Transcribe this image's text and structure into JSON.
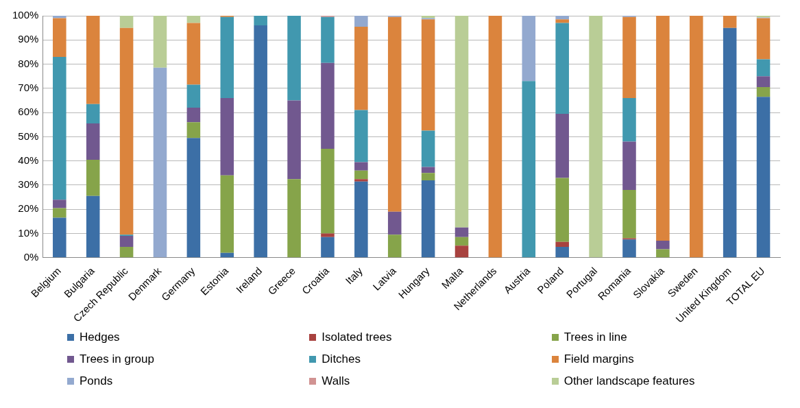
{
  "chart_data": {
    "type": "bar",
    "stacked": true,
    "grid": "y",
    "legend": "bottom",
    "categories": [
      "Belgium",
      "Bulgaria",
      "Czech Republic",
      "Denmark",
      "Germany",
      "Estonia",
      "Ireland",
      "Greece",
      "Croatia",
      "Italy",
      "Latvia",
      "Hungary",
      "Malta",
      "Netherlands",
      "Austria",
      "Poland",
      "Portugal",
      "Romania",
      "Slovakia",
      "Sweden",
      "United Kingdom",
      "TOTAL EU"
    ],
    "ylim": [
      0,
      100
    ],
    "yticks": [
      {
        "value": 0,
        "label": "0%"
      },
      {
        "value": 10,
        "label": "10%"
      },
      {
        "value": 20,
        "label": "20%"
      },
      {
        "value": 30,
        "label": "30%"
      },
      {
        "value": 40,
        "label": "40%"
      },
      {
        "value": 50,
        "label": "50%"
      },
      {
        "value": 60,
        "label": "60%"
      },
      {
        "value": 70,
        "label": "70%"
      },
      {
        "value": 80,
        "label": "80%"
      },
      {
        "value": 90,
        "label": "90%"
      },
      {
        "value": 100,
        "label": "100%"
      }
    ],
    "series": [
      {
        "name": "Hedges",
        "color": "#3c6fa6",
        "values": [
          16.5,
          25.5,
          0,
          0,
          49.5,
          2,
          96,
          0,
          8.5,
          31.5,
          0,
          32,
          0,
          0,
          0,
          4.5,
          0,
          7.5,
          0,
          0,
          95,
          66.5
        ]
      },
      {
        "name": "Isolated trees",
        "color": "#a8423f",
        "values": [
          0,
          0,
          0,
          0,
          0,
          0,
          0,
          0,
          1.5,
          1,
          0,
          0,
          5,
          0,
          0,
          2,
          0,
          0.5,
          0,
          0,
          0,
          0
        ]
      },
      {
        "name": "Trees in line",
        "color": "#86a44a",
        "values": [
          4,
          15,
          4.5,
          0,
          6.5,
          32,
          0,
          32.5,
          35,
          3.5,
          9.5,
          3,
          3.5,
          0,
          0,
          26.5,
          0,
          20,
          3.5,
          0,
          0,
          4
        ]
      },
      {
        "name": "Trees in group",
        "color": "#71588f",
        "values": [
          3.5,
          15,
          4.5,
          0,
          6,
          32,
          0,
          32.5,
          35.5,
          3.5,
          9.5,
          2.5,
          4,
          0,
          0,
          26.5,
          0,
          20,
          3.5,
          0,
          0,
          4.5
        ]
      },
      {
        "name": "Ditches",
        "color": "#4198af",
        "values": [
          59,
          8,
          0.5,
          0,
          9.5,
          33.5,
          4,
          35,
          19,
          21.5,
          0,
          15,
          0,
          0,
          73,
          37.5,
          0,
          18,
          0,
          0,
          0,
          7
        ]
      },
      {
        "name": "Field margins",
        "color": "#db843d",
        "values": [
          16,
          36.5,
          85.5,
          0,
          25.5,
          0.5,
          0,
          0,
          0,
          34.5,
          80.5,
          46,
          0,
          100,
          0,
          1.5,
          0,
          33.5,
          93,
          100,
          5,
          17
        ]
      },
      {
        "name": "Ponds",
        "color": "#93a9cf",
        "values": [
          1,
          0,
          0,
          78.5,
          0,
          0,
          0,
          0,
          0,
          4.5,
          0.5,
          0.5,
          0,
          0,
          27,
          1.5,
          0,
          0.5,
          0,
          0,
          0,
          0.3
        ]
      },
      {
        "name": "Walls",
        "color": "#d19392",
        "values": [
          0,
          0,
          0,
          0,
          0,
          0,
          0,
          0,
          0.5,
          0,
          0,
          0,
          0,
          0,
          0,
          0,
          0,
          0,
          0,
          0,
          0,
          0
        ]
      },
      {
        "name": "Other landscape features",
        "color": "#b9cd96",
        "values": [
          0,
          0,
          5,
          21.5,
          3,
          0,
          0,
          0,
          0,
          0,
          0,
          1,
          87.5,
          0,
          0,
          0,
          100,
          0,
          0,
          0,
          0,
          0.7
        ]
      }
    ]
  }
}
